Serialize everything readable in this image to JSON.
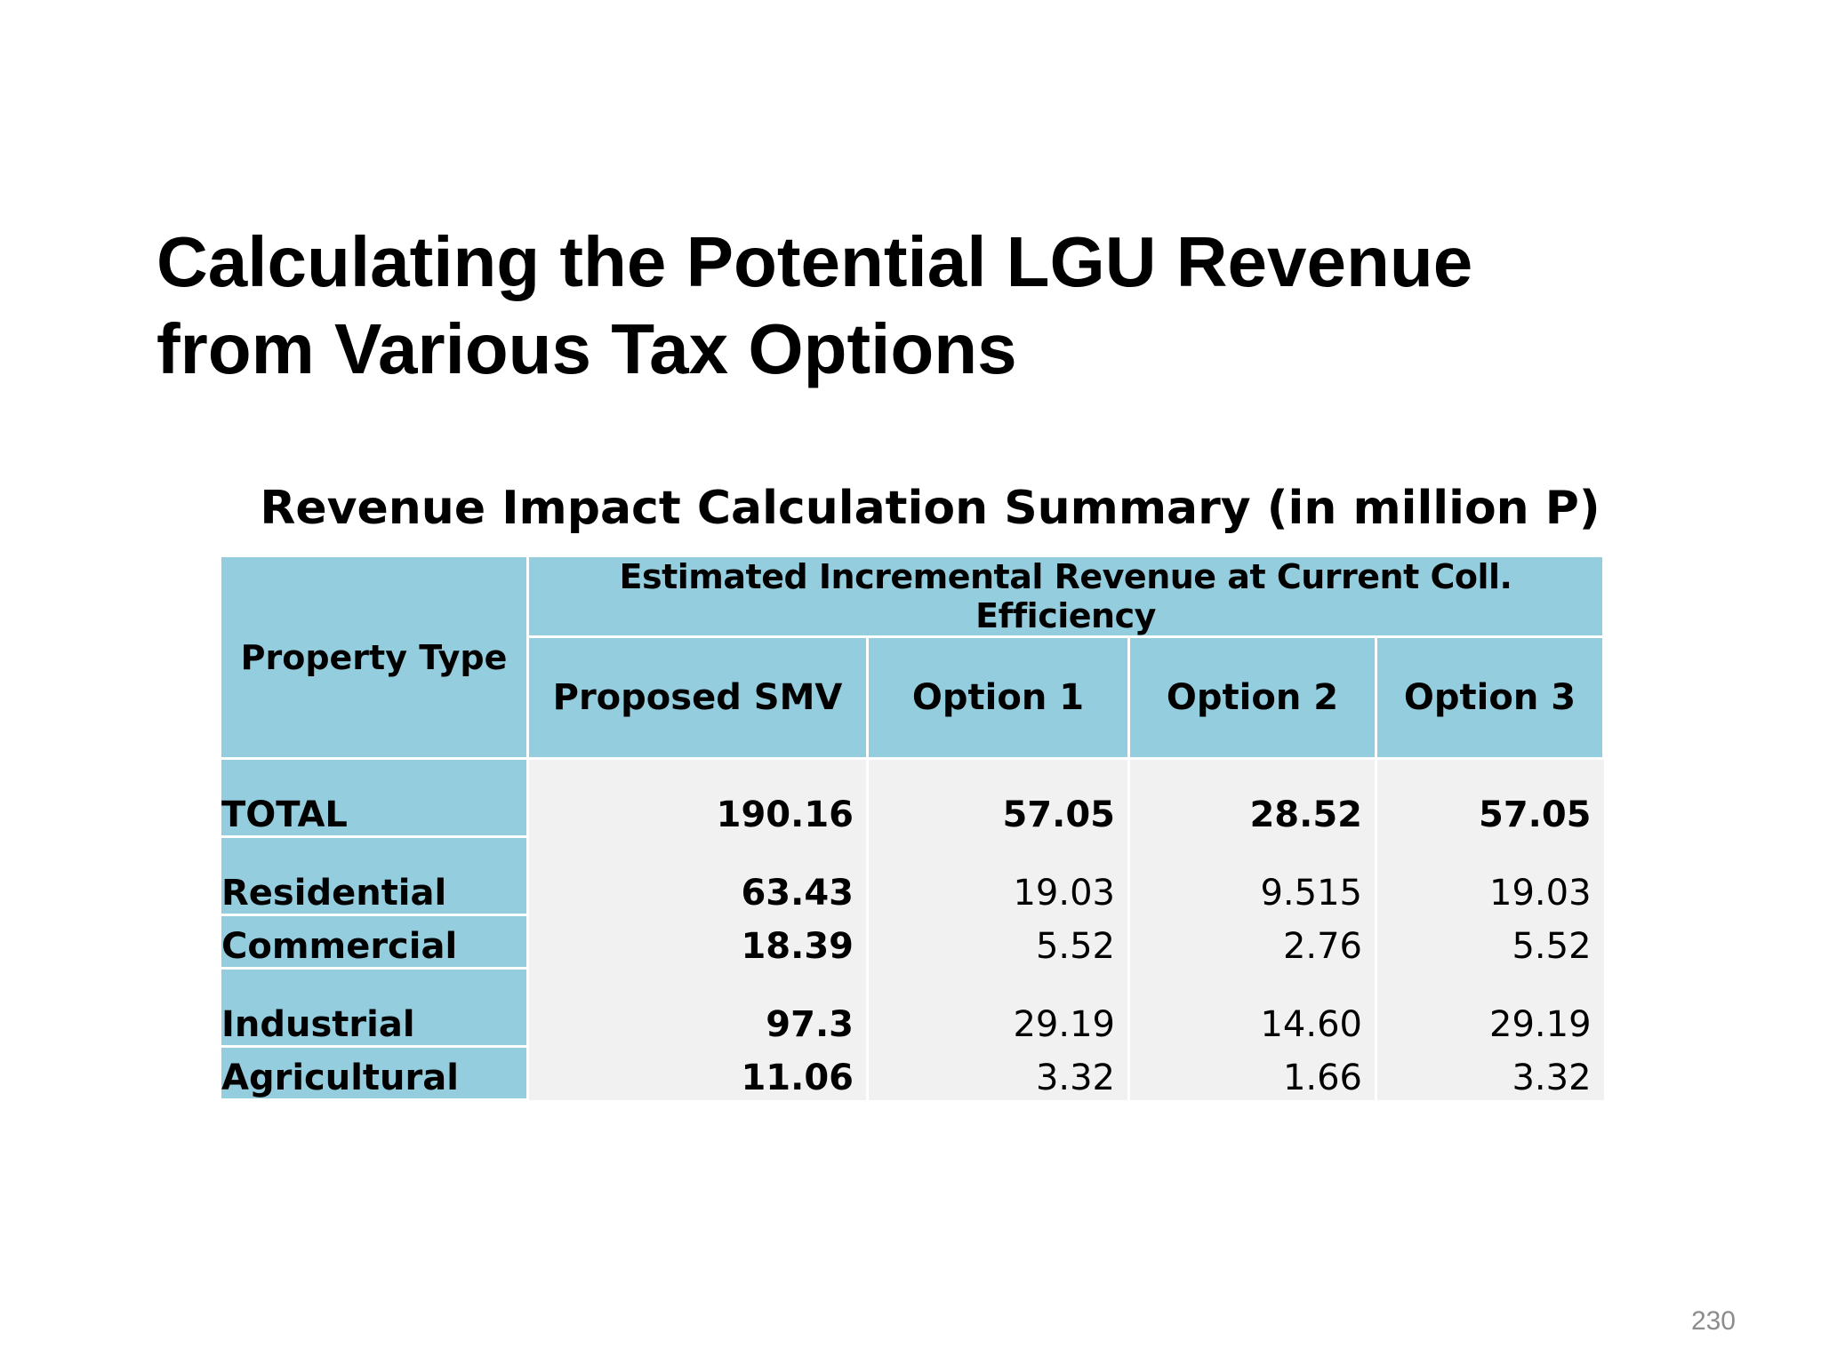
{
  "slide": {
    "title_line1": "Calculating the Potential LGU Revenue",
    "title_line2": "from Various Tax Options",
    "page_number": "230"
  },
  "table": {
    "caption": "Revenue Impact Calculation Summary (in million P)",
    "corner_header": "Property Type",
    "group_header": "Estimated Incremental Revenue at Current Coll. Efficiency",
    "columns": [
      "Proposed SMV",
      "Option 1",
      "Option 2",
      "Option 3"
    ],
    "rows": [
      {
        "label": "TOTAL",
        "values": [
          "190.16",
          "57.05",
          "28.52",
          "57.05"
        ]
      },
      {
        "label": "Residential",
        "values": [
          "63.43",
          "19.03",
          "9.515",
          "19.03"
        ]
      },
      {
        "label": "Commercial",
        "values": [
          "18.39",
          "5.52",
          "2.76",
          "5.52"
        ]
      },
      {
        "label": "Industrial",
        "values": [
          "97.3",
          "29.19",
          "14.60",
          "29.19"
        ]
      },
      {
        "label": "Agricultural",
        "values": [
          "11.06",
          "3.32",
          "1.66",
          "3.32"
        ]
      }
    ]
  },
  "colors": {
    "header_fill": "#94cddd",
    "body_fill": "#f1f1f1",
    "page_number": "#8c8c8c"
  }
}
